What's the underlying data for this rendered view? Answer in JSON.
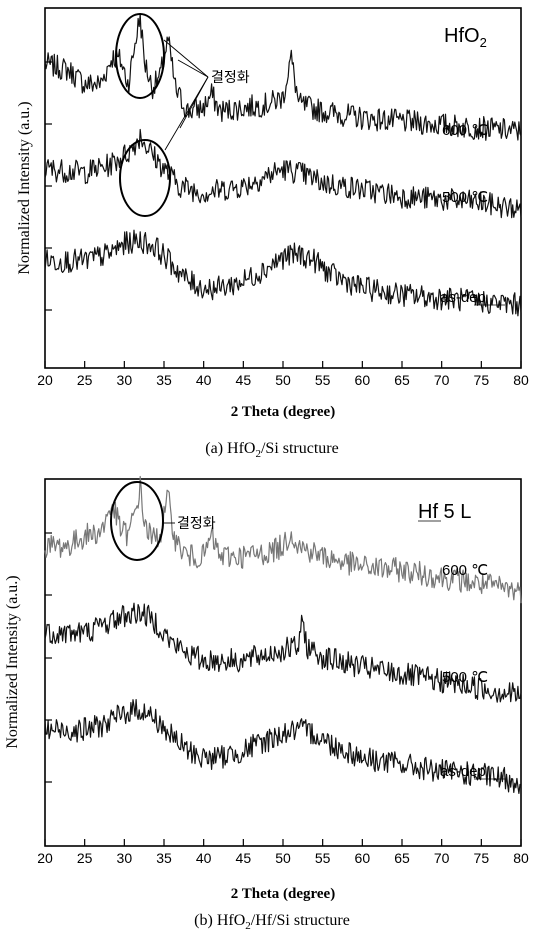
{
  "chart_data": [
    {
      "type": "line",
      "corner_label": {
        "main": "HfO",
        "sub": "2"
      },
      "caption": {
        "before": "(a)  HfO",
        "sub": "2",
        "after": "/Si  structure"
      },
      "xlabel": "2 Theta (degree)",
      "ylabel": "Normalized Intensity (a.u.)",
      "xlim": [
        20,
        80
      ],
      "xticks": [
        20,
        25,
        30,
        35,
        40,
        45,
        50,
        55,
        60,
        65,
        70,
        75,
        80
      ],
      "annotation": "결정화",
      "series": [
        {
          "name": "600 ℃",
          "color": "#111111",
          "x": [
            20,
            23,
            25,
            27,
            28.5,
            29.5,
            30.5,
            31.5,
            32,
            32.5,
            33.5,
            34.5,
            35.5,
            36.5,
            38,
            40,
            41,
            42,
            45,
            48,
            50,
            51,
            52,
            55,
            60,
            65,
            70,
            75,
            80
          ],
          "y": [
            0.86,
            0.84,
            0.8,
            0.8,
            0.88,
            0.87,
            0.8,
            0.94,
            1.0,
            0.87,
            0.79,
            0.82,
            0.93,
            0.78,
            0.72,
            0.73,
            0.77,
            0.72,
            0.73,
            0.74,
            0.76,
            0.88,
            0.74,
            0.72,
            0.7,
            0.69,
            0.68,
            0.67,
            0.66
          ]
        },
        {
          "name": "500 ℃",
          "color": "#111111",
          "x": [
            20,
            25,
            28,
            30,
            31,
            32,
            33,
            34,
            35,
            37,
            40,
            45,
            50,
            52,
            55,
            60,
            65,
            70,
            75,
            80
          ],
          "y": [
            0.55,
            0.54,
            0.56,
            0.59,
            0.61,
            0.65,
            0.61,
            0.58,
            0.55,
            0.5,
            0.48,
            0.5,
            0.55,
            0.54,
            0.51,
            0.49,
            0.47,
            0.46,
            0.45,
            0.43
          ]
        },
        {
          "name": "as-dep",
          "color": "#111111",
          "x": [
            20,
            25,
            28,
            30,
            32,
            34,
            36,
            38,
            40,
            42,
            45,
            48,
            50,
            52,
            54,
            56,
            60,
            65,
            70,
            75,
            80
          ],
          "y": [
            0.28,
            0.28,
            0.3,
            0.33,
            0.34,
            0.32,
            0.27,
            0.22,
            0.2,
            0.2,
            0.22,
            0.26,
            0.29,
            0.3,
            0.28,
            0.24,
            0.2,
            0.18,
            0.17,
            0.16,
            0.15
          ]
        }
      ]
    },
    {
      "type": "line",
      "corner_label": {
        "main": "Hf 5 L",
        "sub": ""
      },
      "caption": {
        "before": "(b)  HfO",
        "sub": "2",
        "after": "/Hf/Si  structure"
      },
      "xlabel": "2 Theta (degree)",
      "ylabel": "Normalized Intensity (a.u.)",
      "xlim": [
        20,
        80
      ],
      "xticks": [
        20,
        25,
        30,
        35,
        40,
        45,
        50,
        55,
        60,
        65,
        70,
        75,
        80
      ],
      "annotation": "결정화",
      "series": [
        {
          "name": "600 ℃",
          "color": "#777777",
          "x": [
            20,
            23,
            25,
            27,
            28.5,
            29.5,
            30.5,
            31.5,
            32,
            32.5,
            33.5,
            34.5,
            35.5,
            36.5,
            38,
            40,
            41,
            42,
            45,
            48,
            50,
            51,
            52,
            55,
            60,
            65,
            70,
            75,
            80
          ],
          "y": [
            0.83,
            0.83,
            0.86,
            0.87,
            0.95,
            0.88,
            0.86,
            0.94,
            1.0,
            0.9,
            0.85,
            0.86,
            0.97,
            0.84,
            0.8,
            0.8,
            0.86,
            0.8,
            0.8,
            0.81,
            0.83,
            0.87,
            0.83,
            0.8,
            0.77,
            0.76,
            0.74,
            0.72,
            0.7
          ]
        },
        {
          "name": "500 ℃",
          "color": "#111111",
          "x": [
            20,
            25,
            28,
            30,
            32,
            34,
            36,
            38,
            40,
            45,
            50,
            52,
            52.5,
            53,
            55,
            60,
            65,
            70,
            75,
            80
          ],
          "y": [
            0.58,
            0.58,
            0.61,
            0.63,
            0.64,
            0.61,
            0.55,
            0.52,
            0.5,
            0.5,
            0.53,
            0.54,
            0.62,
            0.54,
            0.51,
            0.48,
            0.46,
            0.44,
            0.42,
            0.4
          ]
        },
        {
          "name": "as-dep",
          "color": "#111111",
          "x": [
            20,
            25,
            28,
            30,
            32,
            34,
            36,
            38,
            40,
            42,
            45,
            48,
            50,
            52,
            54,
            56,
            60,
            65,
            70,
            75,
            80
          ],
          "y": [
            0.3,
            0.3,
            0.32,
            0.35,
            0.36,
            0.33,
            0.28,
            0.24,
            0.22,
            0.22,
            0.24,
            0.27,
            0.29,
            0.3,
            0.29,
            0.26,
            0.22,
            0.2,
            0.18,
            0.17,
            0.15
          ]
        }
      ]
    }
  ]
}
